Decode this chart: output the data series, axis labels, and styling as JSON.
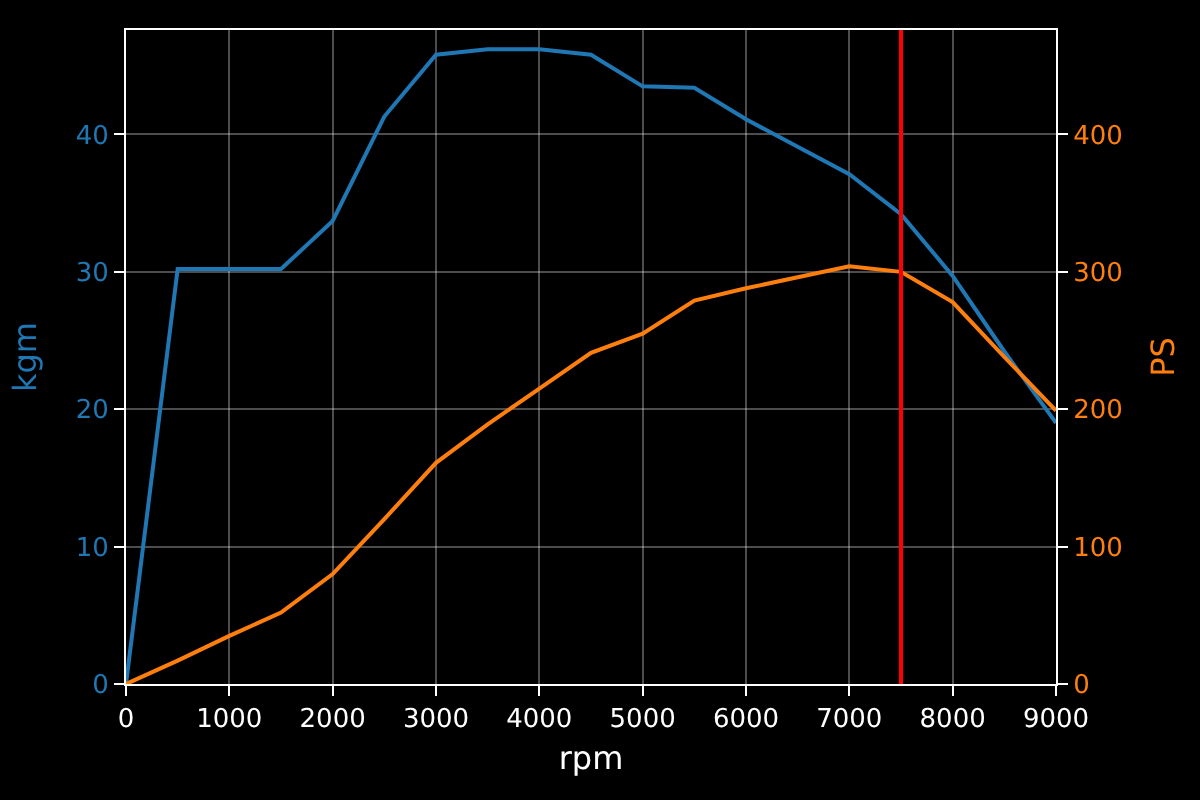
{
  "chart_data": {
    "type": "line",
    "xlabel": "rpm",
    "ylabel": "kgm",
    "y2label": "PS",
    "x": [
      0,
      500,
      1000,
      1500,
      2000,
      2500,
      3000,
      3500,
      4000,
      4500,
      5000,
      5500,
      6000,
      6500,
      7000,
      7500,
      8000,
      8500,
      9000
    ],
    "series": [
      {
        "name": null,
        "color": "#1f77b4",
        "axis": "y",
        "values": [
          0,
          30.2,
          30.2,
          30.2,
          33.7,
          41.3,
          45.8,
          46.2,
          46.2,
          45.8,
          43.5,
          43.4,
          41.1,
          39.1,
          37.1,
          34.2,
          29.7,
          24.2,
          19.0
        ]
      },
      {
        "name": null,
        "color": "#ff7f0e",
        "axis": "y2",
        "values": [
          0,
          17,
          35,
          52,
          80,
          120,
          161,
          189,
          215,
          241,
          255,
          279,
          288,
          296,
          304,
          300,
          278,
          238,
          199
        ]
      }
    ],
    "xlim": [
      0,
      9000
    ],
    "xticks": [
      0,
      1000,
      2000,
      3000,
      4000,
      5000,
      6000,
      7000,
      8000,
      9000
    ],
    "ylim": [
      0,
      47.6
    ],
    "yticks": [
      0,
      10,
      20,
      30,
      40
    ],
    "y2lim": [
      0,
      476
    ],
    "y2ticks": [
      0,
      100,
      200,
      300,
      400
    ],
    "ref_lines": [
      {
        "axis": "x",
        "value": 7500,
        "color": "#ff0000"
      }
    ],
    "grid": true
  }
}
